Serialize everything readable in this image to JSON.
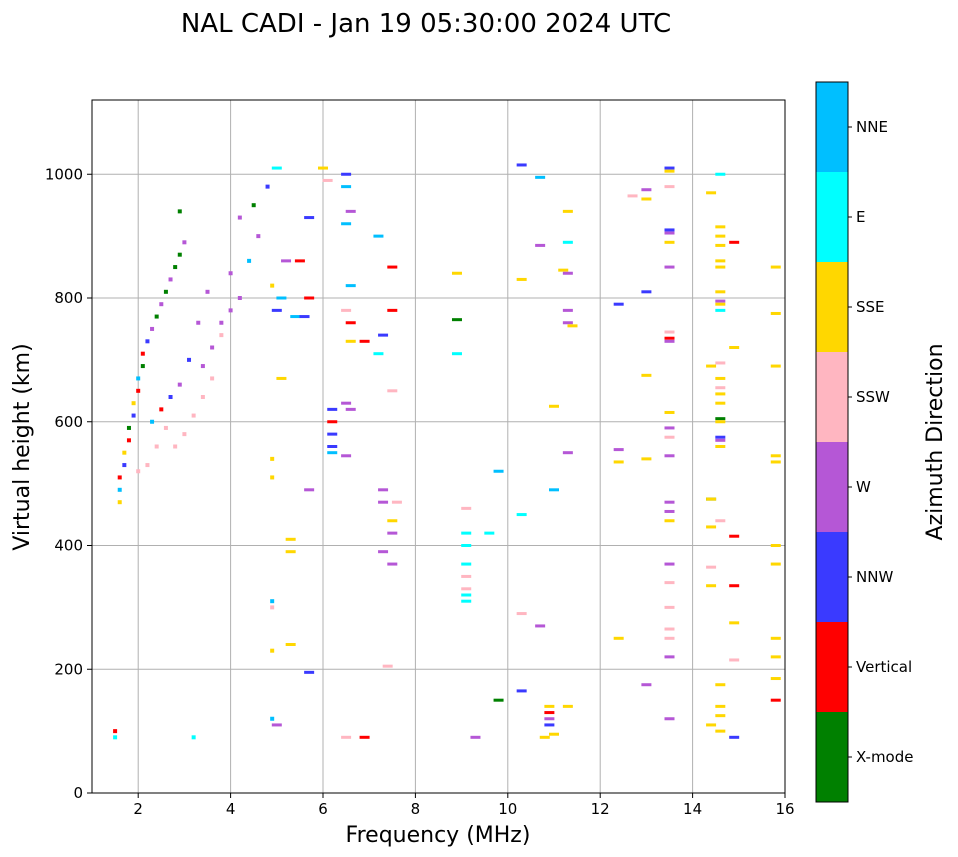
{
  "chart_data": {
    "type": "scatter",
    "title": "NAL CADI - Jan 19 05:30:00 2024 UTC",
    "xlabel": "Frequency (MHz)",
    "ylabel": "Virtual height (km)",
    "xlim": [
      1,
      16
    ],
    "ylim": [
      0,
      1120
    ],
    "xticks": [
      2,
      4,
      6,
      8,
      10,
      12,
      14,
      16
    ],
    "yticks": [
      0,
      200,
      400,
      600,
      800,
      1000
    ],
    "grid": true,
    "colorbar": {
      "label": "Azimuth Direction",
      "categories": [
        {
          "name": "X-mode",
          "color": "#008000"
        },
        {
          "name": "Vertical",
          "color": "#ff0000"
        },
        {
          "name": "NNW",
          "color": "#3a3aff"
        },
        {
          "name": "W",
          "color": "#b557d6"
        },
        {
          "name": "SSW",
          "color": "#ffb6c1"
        },
        {
          "name": "SSE",
          "color": "#ffd700"
        },
        {
          "name": "E",
          "color": "#00ffff"
        },
        {
          "name": "NNE",
          "color": "#00bfff"
        }
      ]
    },
    "points": [
      {
        "f": 1.5,
        "h": 90,
        "c": "E"
      },
      {
        "f": 1.5,
        "h": 100,
        "c": "Vertical"
      },
      {
        "f": 3.2,
        "h": 90,
        "c": "E"
      },
      {
        "f": 1.6,
        "h": 470,
        "c": "SSE"
      },
      {
        "f": 1.6,
        "h": 490,
        "c": "NNE"
      },
      {
        "f": 1.6,
        "h": 510,
        "c": "Vertical"
      },
      {
        "f": 1.7,
        "h": 530,
        "c": "NNW"
      },
      {
        "f": 1.7,
        "h": 550,
        "c": "SSE"
      },
      {
        "f": 1.8,
        "h": 570,
        "c": "Vertical"
      },
      {
        "f": 1.8,
        "h": 590,
        "c": "X-mode"
      },
      {
        "f": 1.9,
        "h": 610,
        "c": "NNW"
      },
      {
        "f": 1.9,
        "h": 630,
        "c": "SSE"
      },
      {
        "f": 2.0,
        "h": 650,
        "c": "Vertical"
      },
      {
        "f": 2.0,
        "h": 670,
        "c": "NNE"
      },
      {
        "f": 2.1,
        "h": 690,
        "c": "X-mode"
      },
      {
        "f": 2.1,
        "h": 710,
        "c": "Vertical"
      },
      {
        "f": 2.2,
        "h": 730,
        "c": "NNW"
      },
      {
        "f": 2.3,
        "h": 750,
        "c": "W"
      },
      {
        "f": 2.4,
        "h": 770,
        "c": "X-mode"
      },
      {
        "f": 2.5,
        "h": 790,
        "c": "W"
      },
      {
        "f": 2.6,
        "h": 810,
        "c": "X-mode"
      },
      {
        "f": 2.7,
        "h": 830,
        "c": "W"
      },
      {
        "f": 2.8,
        "h": 850,
        "c": "X-mode"
      },
      {
        "f": 2.9,
        "h": 870,
        "c": "X-mode"
      },
      {
        "f": 3.0,
        "h": 890,
        "c": "W"
      },
      {
        "f": 2.9,
        "h": 940,
        "c": "X-mode"
      },
      {
        "f": 2.0,
        "h": 520,
        "c": "SSW"
      },
      {
        "f": 2.2,
        "h": 530,
        "c": "SSW"
      },
      {
        "f": 2.4,
        "h": 560,
        "c": "SSW"
      },
      {
        "f": 2.6,
        "h": 590,
        "c": "SSW"
      },
      {
        "f": 2.8,
        "h": 560,
        "c": "SSW"
      },
      {
        "f": 3.0,
        "h": 580,
        "c": "SSW"
      },
      {
        "f": 3.2,
        "h": 610,
        "c": "SSW"
      },
      {
        "f": 3.4,
        "h": 640,
        "c": "SSW"
      },
      {
        "f": 3.6,
        "h": 670,
        "c": "SSW"
      },
      {
        "f": 3.4,
        "h": 690,
        "c": "W"
      },
      {
        "f": 3.6,
        "h": 720,
        "c": "W"
      },
      {
        "f": 3.8,
        "h": 760,
        "c": "W"
      },
      {
        "f": 4.0,
        "h": 780,
        "c": "W"
      },
      {
        "f": 4.2,
        "h": 800,
        "c": "W"
      },
      {
        "f": 3.8,
        "h": 740,
        "c": "SSW"
      },
      {
        "f": 3.3,
        "h": 760,
        "c": "W"
      },
      {
        "f": 3.1,
        "h": 700,
        "c": "NNW"
      },
      {
        "f": 2.5,
        "h": 620,
        "c": "Vertical"
      },
      {
        "f": 2.3,
        "h": 600,
        "c": "NNE"
      },
      {
        "f": 2.7,
        "h": 640,
        "c": "NNW"
      },
      {
        "f": 2.9,
        "h": 660,
        "c": "W"
      },
      {
        "f": 3.5,
        "h": 810,
        "c": "W"
      },
      {
        "f": 4.0,
        "h": 840,
        "c": "W"
      },
      {
        "f": 4.4,
        "h": 860,
        "c": "NNE"
      },
      {
        "f": 4.6,
        "h": 900,
        "c": "W"
      },
      {
        "f": 4.2,
        "h": 930,
        "c": "W"
      },
      {
        "f": 4.5,
        "h": 950,
        "c": "X-mode"
      },
      {
        "f": 4.8,
        "h": 980,
        "c": "NNW"
      },
      {
        "f": 5.0,
        "h": 1010,
        "c": "E"
      },
      {
        "f": 4.9,
        "h": 820,
        "c": "SSE"
      },
      {
        "f": 5.1,
        "h": 800,
        "c": "NNE"
      },
      {
        "f": 5.0,
        "h": 780,
        "c": "NNW"
      },
      {
        "f": 5.4,
        "h": 770,
        "c": "NNE"
      },
      {
        "f": 5.6,
        "h": 770,
        "c": "NNW"
      },
      {
        "f": 5.7,
        "h": 800,
        "c": "Vertical"
      },
      {
        "f": 5.5,
        "h": 860,
        "c": "Vertical"
      },
      {
        "f": 5.2,
        "h": 860,
        "c": "W"
      },
      {
        "f": 5.7,
        "h": 930,
        "c": "NNW"
      },
      {
        "f": 5.1,
        "h": 670,
        "c": "SSE"
      },
      {
        "f": 4.9,
        "h": 540,
        "c": "SSE"
      },
      {
        "f": 4.9,
        "h": 510,
        "c": "SSE"
      },
      {
        "f": 5.3,
        "h": 410,
        "c": "SSE"
      },
      {
        "f": 5.3,
        "h": 390,
        "c": "SSE"
      },
      {
        "f": 5.3,
        "h": 240,
        "c": "SSE"
      },
      {
        "f": 4.9,
        "h": 310,
        "c": "NNE"
      },
      {
        "f": 4.9,
        "h": 300,
        "c": "SSW"
      },
      {
        "f": 4.9,
        "h": 230,
        "c": "SSE"
      },
      {
        "f": 4.9,
        "h": 120,
        "c": "NNE"
      },
      {
        "f": 5.0,
        "h": 110,
        "c": "W"
      },
      {
        "f": 5.7,
        "h": 490,
        "c": "W"
      },
      {
        "f": 5.7,
        "h": 195,
        "c": "NNW"
      },
      {
        "f": 6.2,
        "h": 560,
        "c": "NNW"
      },
      {
        "f": 6.2,
        "h": 580,
        "c": "NNW"
      },
      {
        "f": 6.2,
        "h": 600,
        "c": "Vertical"
      },
      {
        "f": 6.2,
        "h": 620,
        "c": "NNW"
      },
      {
        "f": 6.2,
        "h": 550,
        "c": "NNE"
      },
      {
        "f": 6.0,
        "h": 1010,
        "c": "SSE"
      },
      {
        "f": 6.1,
        "h": 990,
        "c": "SSW"
      },
      {
        "f": 6.5,
        "h": 1000,
        "c": "NNW"
      },
      {
        "f": 6.5,
        "h": 980,
        "c": "NNE"
      },
      {
        "f": 6.6,
        "h": 940,
        "c": "W"
      },
      {
        "f": 6.5,
        "h": 920,
        "c": "NNE"
      },
      {
        "f": 6.6,
        "h": 820,
        "c": "NNE"
      },
      {
        "f": 6.5,
        "h": 780,
        "c": "SSW"
      },
      {
        "f": 6.6,
        "h": 760,
        "c": "Vertical"
      },
      {
        "f": 6.6,
        "h": 730,
        "c": "SSE"
      },
      {
        "f": 6.5,
        "h": 630,
        "c": "W"
      },
      {
        "f": 6.6,
        "h": 620,
        "c": "W"
      },
      {
        "f": 6.5,
        "h": 545,
        "c": "W"
      },
      {
        "f": 6.9,
        "h": 730,
        "c": "Vertical"
      },
      {
        "f": 7.2,
        "h": 900,
        "c": "NNE"
      },
      {
        "f": 7.5,
        "h": 850,
        "c": "Vertical"
      },
      {
        "f": 7.5,
        "h": 780,
        "c": "Vertical"
      },
      {
        "f": 7.3,
        "h": 740,
        "c": "NNW"
      },
      {
        "f": 7.2,
        "h": 710,
        "c": "E"
      },
      {
        "f": 7.5,
        "h": 650,
        "c": "SSW"
      },
      {
        "f": 7.3,
        "h": 490,
        "c": "W"
      },
      {
        "f": 7.3,
        "h": 470,
        "c": "W"
      },
      {
        "f": 7.5,
        "h": 440,
        "c": "SSE"
      },
      {
        "f": 7.5,
        "h": 420,
        "c": "W"
      },
      {
        "f": 7.6,
        "h": 470,
        "c": "SSW"
      },
      {
        "f": 7.3,
        "h": 390,
        "c": "W"
      },
      {
        "f": 7.5,
        "h": 370,
        "c": "W"
      },
      {
        "f": 7.4,
        "h": 205,
        "c": "SSW"
      },
      {
        "f": 6.5,
        "h": 90,
        "c": "SSW"
      },
      {
        "f": 6.9,
        "h": 90,
        "c": "Vertical"
      },
      {
        "f": 8.9,
        "h": 840,
        "c": "SSE"
      },
      {
        "f": 8.9,
        "h": 765,
        "c": "X-mode"
      },
      {
        "f": 8.9,
        "h": 710,
        "c": "E"
      },
      {
        "f": 9.1,
        "h": 460,
        "c": "SSW"
      },
      {
        "f": 9.1,
        "h": 420,
        "c": "E"
      },
      {
        "f": 9.1,
        "h": 400,
        "c": "E"
      },
      {
        "f": 9.1,
        "h": 370,
        "c": "E"
      },
      {
        "f": 9.1,
        "h": 350,
        "c": "SSW"
      },
      {
        "f": 9.1,
        "h": 330,
        "c": "SSW"
      },
      {
        "f": 9.1,
        "h": 320,
        "c": "E"
      },
      {
        "f": 9.1,
        "h": 310,
        "c": "E"
      },
      {
        "f": 9.3,
        "h": 90,
        "c": "W"
      },
      {
        "f": 9.6,
        "h": 420,
        "c": "E"
      },
      {
        "f": 9.8,
        "h": 520,
        "c": "NNE"
      },
      {
        "f": 9.8,
        "h": 150,
        "c": "X-mode"
      },
      {
        "f": 10.3,
        "h": 1015,
        "c": "NNW"
      },
      {
        "f": 10.3,
        "h": 830,
        "c": "SSE"
      },
      {
        "f": 10.3,
        "h": 450,
        "c": "E"
      },
      {
        "f": 10.3,
        "h": 290,
        "c": "SSW"
      },
      {
        "f": 10.3,
        "h": 165,
        "c": "NNW"
      },
      {
        "f": 10.7,
        "h": 995,
        "c": "NNE"
      },
      {
        "f": 10.7,
        "h": 885,
        "c": "W"
      },
      {
        "f": 10.7,
        "h": 270,
        "c": "W"
      },
      {
        "f": 10.8,
        "h": 90,
        "c": "SSE"
      },
      {
        "f": 10.9,
        "h": 140,
        "c": "SSE"
      },
      {
        "f": 10.9,
        "h": 130,
        "c": "Vertical"
      },
      {
        "f": 10.9,
        "h": 120,
        "c": "W"
      },
      {
        "f": 10.9,
        "h": 110,
        "c": "NNW"
      },
      {
        "f": 11.0,
        "h": 625,
        "c": "SSE"
      },
      {
        "f": 11.0,
        "h": 490,
        "c": "NNE"
      },
      {
        "f": 11.0,
        "h": 95,
        "c": "SSE"
      },
      {
        "f": 11.2,
        "h": 845,
        "c": "SSE"
      },
      {
        "f": 11.3,
        "h": 940,
        "c": "SSE"
      },
      {
        "f": 11.3,
        "h": 890,
        "c": "E"
      },
      {
        "f": 11.3,
        "h": 840,
        "c": "W"
      },
      {
        "f": 11.3,
        "h": 780,
        "c": "W"
      },
      {
        "f": 11.3,
        "h": 760,
        "c": "W"
      },
      {
        "f": 11.4,
        "h": 755,
        "c": "SSE"
      },
      {
        "f": 11.3,
        "h": 550,
        "c": "W"
      },
      {
        "f": 11.3,
        "h": 140,
        "c": "SSE"
      },
      {
        "f": 12.4,
        "h": 790,
        "c": "NNW"
      },
      {
        "f": 12.4,
        "h": 555,
        "c": "W"
      },
      {
        "f": 12.4,
        "h": 535,
        "c": "SSE"
      },
      {
        "f": 12.4,
        "h": 250,
        "c": "SSE"
      },
      {
        "f": 12.7,
        "h": 965,
        "c": "SSW"
      },
      {
        "f": 13.0,
        "h": 975,
        "c": "W"
      },
      {
        "f": 13.0,
        "h": 960,
        "c": "SSE"
      },
      {
        "f": 13.0,
        "h": 810,
        "c": "NNW"
      },
      {
        "f": 13.0,
        "h": 675,
        "c": "SSE"
      },
      {
        "f": 13.0,
        "h": 540,
        "c": "SSE"
      },
      {
        "f": 13.0,
        "h": 175,
        "c": "W"
      },
      {
        "f": 13.5,
        "h": 1010,
        "c": "NNW"
      },
      {
        "f": 13.5,
        "h": 1005,
        "c": "SSE"
      },
      {
        "f": 13.5,
        "h": 980,
        "c": "SSW"
      },
      {
        "f": 13.5,
        "h": 910,
        "c": "NNW"
      },
      {
        "f": 13.5,
        "h": 905,
        "c": "W"
      },
      {
        "f": 13.5,
        "h": 890,
        "c": "SSE"
      },
      {
        "f": 13.5,
        "h": 850,
        "c": "W"
      },
      {
        "f": 13.5,
        "h": 745,
        "c": "SSW"
      },
      {
        "f": 13.5,
        "h": 735,
        "c": "Vertical"
      },
      {
        "f": 13.5,
        "h": 730,
        "c": "W"
      },
      {
        "f": 13.5,
        "h": 615,
        "c": "SSE"
      },
      {
        "f": 13.5,
        "h": 590,
        "c": "W"
      },
      {
        "f": 13.5,
        "h": 575,
        "c": "SSW"
      },
      {
        "f": 13.5,
        "h": 545,
        "c": "W"
      },
      {
        "f": 13.5,
        "h": 470,
        "c": "W"
      },
      {
        "f": 13.5,
        "h": 455,
        "c": "W"
      },
      {
        "f": 13.5,
        "h": 440,
        "c": "SSE"
      },
      {
        "f": 13.5,
        "h": 370,
        "c": "W"
      },
      {
        "f": 13.5,
        "h": 340,
        "c": "SSW"
      },
      {
        "f": 13.5,
        "h": 300,
        "c": "SSW"
      },
      {
        "f": 13.5,
        "h": 265,
        "c": "SSW"
      },
      {
        "f": 13.5,
        "h": 250,
        "c": "SSW"
      },
      {
        "f": 13.5,
        "h": 220,
        "c": "W"
      },
      {
        "f": 13.5,
        "h": 120,
        "c": "W"
      },
      {
        "f": 14.4,
        "h": 970,
        "c": "SSE"
      },
      {
        "f": 14.4,
        "h": 690,
        "c": "SSE"
      },
      {
        "f": 14.4,
        "h": 475,
        "c": "X-mode"
      },
      {
        "f": 14.4,
        "h": 475,
        "c": "SSE"
      },
      {
        "f": 14.4,
        "h": 430,
        "c": "SSE"
      },
      {
        "f": 14.4,
        "h": 365,
        "c": "SSW"
      },
      {
        "f": 14.4,
        "h": 335,
        "c": "SSE"
      },
      {
        "f": 14.4,
        "h": 110,
        "c": "SSE"
      },
      {
        "f": 14.6,
        "h": 1000,
        "c": "E"
      },
      {
        "f": 14.6,
        "h": 915,
        "c": "SSE"
      },
      {
        "f": 14.6,
        "h": 900,
        "c": "SSE"
      },
      {
        "f": 14.6,
        "h": 885,
        "c": "SSE"
      },
      {
        "f": 14.6,
        "h": 860,
        "c": "SSE"
      },
      {
        "f": 14.6,
        "h": 850,
        "c": "SSE"
      },
      {
        "f": 14.6,
        "h": 810,
        "c": "SSE"
      },
      {
        "f": 14.6,
        "h": 795,
        "c": "W"
      },
      {
        "f": 14.6,
        "h": 790,
        "c": "SSE"
      },
      {
        "f": 14.6,
        "h": 780,
        "c": "E"
      },
      {
        "f": 14.6,
        "h": 695,
        "c": "SSW"
      },
      {
        "f": 14.6,
        "h": 670,
        "c": "SSE"
      },
      {
        "f": 14.6,
        "h": 655,
        "c": "SSW"
      },
      {
        "f": 14.6,
        "h": 645,
        "c": "SSE"
      },
      {
        "f": 14.6,
        "h": 630,
        "c": "SSE"
      },
      {
        "f": 14.6,
        "h": 605,
        "c": "X-mode"
      },
      {
        "f": 14.6,
        "h": 600,
        "c": "SSE"
      },
      {
        "f": 14.6,
        "h": 575,
        "c": "NNW"
      },
      {
        "f": 14.6,
        "h": 570,
        "c": "W"
      },
      {
        "f": 14.6,
        "h": 560,
        "c": "SSE"
      },
      {
        "f": 14.6,
        "h": 440,
        "c": "SSW"
      },
      {
        "f": 14.6,
        "h": 175,
        "c": "SSE"
      },
      {
        "f": 14.6,
        "h": 140,
        "c": "SSE"
      },
      {
        "f": 14.6,
        "h": 125,
        "c": "SSE"
      },
      {
        "f": 14.6,
        "h": 100,
        "c": "SSE"
      },
      {
        "f": 14.9,
        "h": 890,
        "c": "Vertical"
      },
      {
        "f": 14.9,
        "h": 720,
        "c": "SSE"
      },
      {
        "f": 14.9,
        "h": 415,
        "c": "Vertical"
      },
      {
        "f": 14.9,
        "h": 335,
        "c": "Vertical"
      },
      {
        "f": 14.9,
        "h": 275,
        "c": "SSE"
      },
      {
        "f": 14.9,
        "h": 215,
        "c": "SSW"
      },
      {
        "f": 14.9,
        "h": 90,
        "c": "NNW"
      },
      {
        "f": 15.8,
        "h": 850,
        "c": "SSE"
      },
      {
        "f": 15.8,
        "h": 775,
        "c": "SSE"
      },
      {
        "f": 15.8,
        "h": 690,
        "c": "SSE"
      },
      {
        "f": 15.8,
        "h": 545,
        "c": "SSE"
      },
      {
        "f": 15.8,
        "h": 535,
        "c": "SSE"
      },
      {
        "f": 15.8,
        "h": 400,
        "c": "SSE"
      },
      {
        "f": 15.8,
        "h": 370,
        "c": "SSE"
      },
      {
        "f": 15.8,
        "h": 250,
        "c": "SSE"
      },
      {
        "f": 15.8,
        "h": 220,
        "c": "SSE"
      },
      {
        "f": 15.8,
        "h": 185,
        "c": "SSE"
      },
      {
        "f": 15.8,
        "h": 150,
        "c": "Vertical"
      }
    ]
  }
}
